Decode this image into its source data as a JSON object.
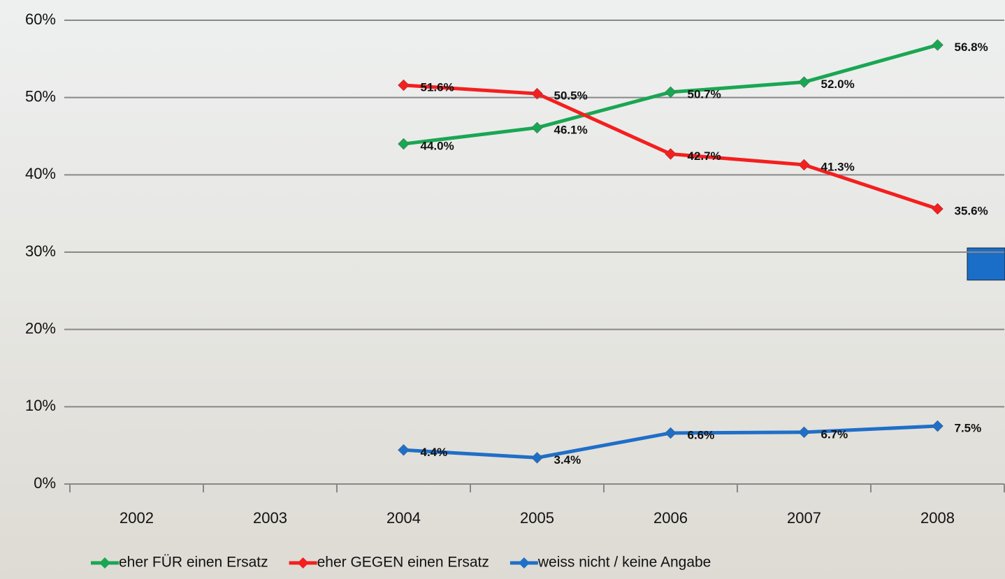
{
  "chart_data": {
    "type": "line",
    "categories": [
      "2002",
      "2003",
      "2004",
      "2005",
      "2006",
      "2007",
      "2008"
    ],
    "series": [
      {
        "name": "eher FÜR einen Ersatz",
        "color": "#1aa653",
        "values": [
          null,
          null,
          44.0,
          46.1,
          50.7,
          52.0,
          56.8
        ],
        "value_labels": [
          null,
          null,
          "44.0%",
          "46.1%",
          "50.7%",
          "52.0%",
          "56.8%"
        ]
      },
      {
        "name": "eher GEGEN einen Ersatz",
        "color": "#f41f1f",
        "values": [
          null,
          null,
          51.6,
          50.5,
          42.7,
          41.3,
          35.6
        ],
        "value_labels": [
          null,
          null,
          "51.6%",
          "50.5%",
          "42.7%",
          "41.3%",
          "35.6%"
        ]
      },
      {
        "name": "weiss nicht / keine Angabe",
        "color": "#1f6fc8",
        "values": [
          null,
          null,
          4.4,
          3.4,
          6.6,
          6.7,
          7.5
        ],
        "value_labels": [
          null,
          null,
          "4.4%",
          "3.4%",
          "6.6%",
          "6.7%",
          "7.5%"
        ]
      }
    ],
    "ylim": [
      0,
      60
    ],
    "yticks": [
      {
        "value": 0,
        "label": "0%"
      },
      {
        "value": 10,
        "label": "10%"
      },
      {
        "value": 20,
        "label": "20%"
      },
      {
        "value": 30,
        "label": "30%"
      },
      {
        "value": 40,
        "label": "40%"
      },
      {
        "value": 50,
        "label": "50%"
      },
      {
        "value": 60,
        "label": "60%"
      }
    ],
    "grid": true
  }
}
